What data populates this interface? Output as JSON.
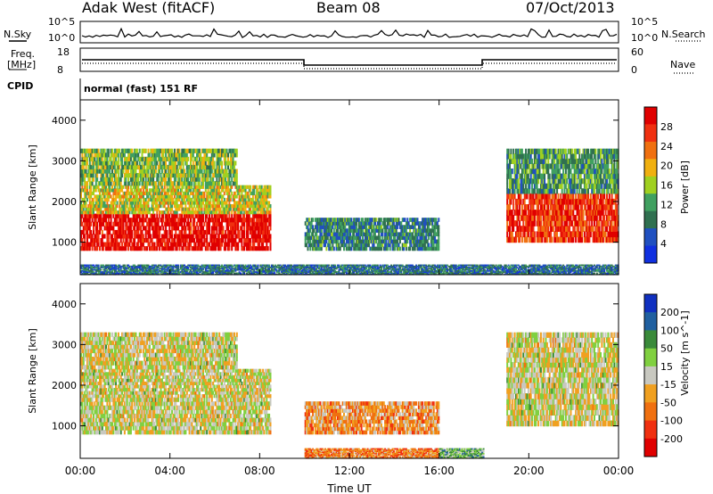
{
  "header": {
    "site": "Adak West (fitACF)",
    "beam": "Beam 08",
    "date": "07/Oct/2013"
  },
  "noise_panel": {
    "left_label": "N.Sky",
    "right_label": "N.Search",
    "ticks_left": [
      "10^5",
      "10^0"
    ],
    "ticks_right": [
      "10^5",
      "10^0"
    ]
  },
  "freq_panel": {
    "left_label": "Freq.",
    "left_unit": "[MHz]",
    "left_ticks": [
      "18",
      "8"
    ],
    "right_label": "Nave",
    "right_ticks": [
      "60",
      "0"
    ]
  },
  "cpid": {
    "label": "CPID",
    "value": "normal (fast) 151 RF"
  },
  "colors": {
    "power_scale": [
      "#1030e0",
      "#2050c0",
      "#307050",
      "#40a060",
      "#a0d020",
      "#f0b010",
      "#f07010",
      "#f03010",
      "#e00000"
    ],
    "velocity_scale": [
      "#1030c0",
      "#2060a0",
      "#3a8a3a",
      "#80d040",
      "#c8c8c0",
      "#f0a020",
      "#f07010",
      "#f03010",
      "#e00000"
    ]
  },
  "chart_data": [
    {
      "type": "heatmap",
      "name": "power",
      "ylabel": "Slant Range [km]",
      "yticks": [
        "1000",
        "2000",
        "3000",
        "4000"
      ],
      "ylim": [
        200,
        4500
      ],
      "colorbar_label": "Power [dB]",
      "colorbar_ticks": [
        "4",
        "8",
        "12",
        "16",
        "20",
        "24",
        "28"
      ],
      "colorbar_range": [
        0,
        30
      ],
      "bands": [
        {
          "x": [
            0,
            8.5
          ],
          "y": [
            800,
            1700
          ],
          "level": 0.95
        },
        {
          "x": [
            0,
            8.5
          ],
          "y": [
            1700,
            2400
          ],
          "level": 0.55
        },
        {
          "x": [
            0,
            7.0
          ],
          "y": [
            2400,
            3300
          ],
          "level": 0.45
        },
        {
          "x": [
            10.0,
            16.0
          ],
          "y": [
            800,
            1600
          ],
          "level": 0.3
        },
        {
          "x": [
            19.0,
            24.0
          ],
          "y": [
            1000,
            2200
          ],
          "level": 0.85
        },
        {
          "x": [
            19.0,
            24.0
          ],
          "y": [
            2200,
            3300
          ],
          "level": 0.35
        },
        {
          "x": [
            0,
            24.0
          ],
          "y": [
            200,
            450
          ],
          "level": 0.25
        }
      ]
    },
    {
      "type": "heatmap",
      "name": "velocity",
      "xlabel": "Time UT",
      "xticks": [
        "00:00",
        "04:00",
        "08:00",
        "12:00",
        "16:00",
        "20:00",
        "00:00"
      ],
      "xlim": [
        0,
        24
      ],
      "ylabel": "Slant Range [km]",
      "yticks": [
        "1000",
        "2000",
        "3000",
        "4000"
      ],
      "ylim": [
        200,
        4500
      ],
      "colorbar_label": "Velocity [m s^-1]",
      "colorbar_ticks": [
        "200",
        "100",
        "50",
        "15",
        "-15",
        "-50",
        "-100",
        "-200"
      ],
      "colorbar_range": [
        -250,
        250
      ],
      "bands": [
        {
          "x": [
            0,
            8.5
          ],
          "y": [
            800,
            1700
          ],
          "level": 0.5
        },
        {
          "x": [
            0,
            8.5
          ],
          "y": [
            1700,
            2400
          ],
          "level": 0.5
        },
        {
          "x": [
            0,
            7.0
          ],
          "y": [
            2400,
            3300
          ],
          "level": 0.5
        },
        {
          "x": [
            10.0,
            16.0
          ],
          "y": [
            800,
            1600
          ],
          "level": 0.65
        },
        {
          "x": [
            19.0,
            24.0
          ],
          "y": [
            1000,
            2200
          ],
          "level": 0.5
        },
        {
          "x": [
            19.0,
            24.0
          ],
          "y": [
            2200,
            3300
          ],
          "level": 0.5
        },
        {
          "x": [
            10.0,
            16.0
          ],
          "y": [
            200,
            450
          ],
          "level": 0.7
        },
        {
          "x": [
            16.0,
            18.0
          ],
          "y": [
            200,
            450
          ],
          "level": 0.35
        }
      ]
    }
  ]
}
